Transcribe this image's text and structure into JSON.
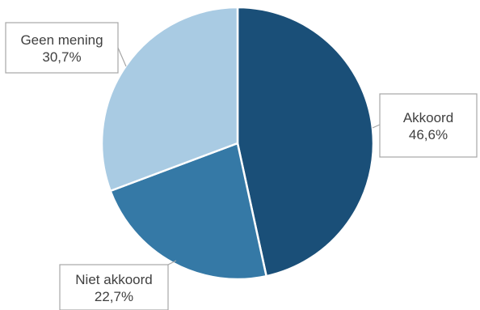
{
  "chart_data": {
    "type": "pie",
    "title": "",
    "start": "top",
    "direction": "clockwise",
    "legend": "none",
    "slices": [
      {
        "label": "Akkoord",
        "value": 46.6,
        "value_label": "46,6%",
        "color": "#1a4f78"
      },
      {
        "label": "Niet akkoord",
        "value": 22.7,
        "value_label": "22,7%",
        "color": "#3579a6"
      },
      {
        "label": "Geen mening",
        "value": 30.7,
        "value_label": "30,7%",
        "color": "#a9cbe3"
      }
    ]
  }
}
